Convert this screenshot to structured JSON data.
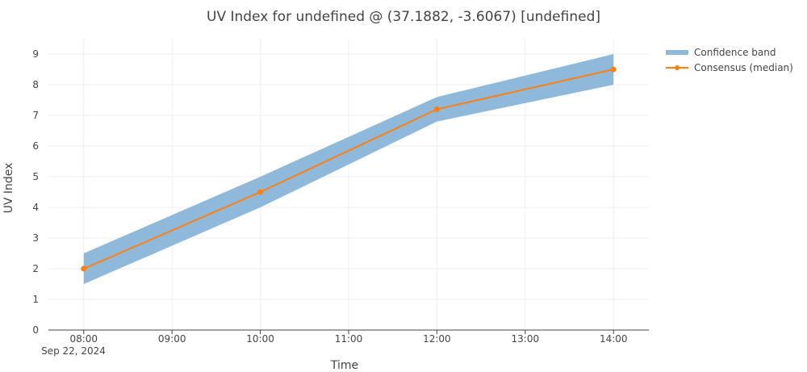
{
  "chart_data": {
    "type": "line",
    "title": "UV Index for undefined @ (37.1882, -3.6067) [undefined]",
    "xlabel": "Time",
    "ylabel": "UV Index",
    "date_label": "Sep 22, 2024",
    "x_ticks": [
      "08:00",
      "09:00",
      "10:00",
      "11:00",
      "12:00",
      "13:00",
      "14:00"
    ],
    "x_range_hours": [
      7.6,
      14.4
    ],
    "ylim": [
      0,
      9.5
    ],
    "y_ticks": [
      0,
      1,
      2,
      3,
      4,
      5,
      6,
      7,
      8,
      9
    ],
    "grid": true,
    "legend_position": "top-right",
    "band": {
      "name": "Confidence band",
      "color": "#8fb9da",
      "x": [
        8,
        10,
        12,
        14
      ],
      "upper": [
        2.5,
        5.0,
        7.6,
        9.0
      ],
      "lower": [
        1.5,
        4.0,
        6.8,
        8.0
      ]
    },
    "series": [
      {
        "name": "Consensus (median)",
        "color": "#ff7f0e",
        "x": [
          8,
          10,
          12,
          14
        ],
        "values": [
          2.0,
          4.5,
          7.2,
          8.5
        ]
      }
    ]
  }
}
